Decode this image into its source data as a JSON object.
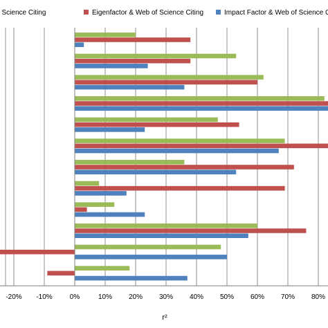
{
  "chart_data": {
    "type": "bar",
    "orientation": "horizontal",
    "categories": [
      "",
      "",
      "",
      "",
      "",
      "",
      "",
      "",
      "",
      "",
      "",
      ""
    ],
    "series": [
      {
        "name": "… & Web of Science Citing",
        "color": "#9BBB59",
        "values": [
          20,
          53,
          62,
          82,
          47,
          69,
          36,
          8,
          13,
          60,
          48,
          18
        ]
      },
      {
        "name": "Eigenfactor & Web of Science Citing",
        "color": "#C0504D",
        "values": [
          38,
          38,
          60,
          85,
          54,
          85,
          72,
          69,
          4,
          76,
          -28,
          -9
        ]
      },
      {
        "name": "Impact Factor & Web of Science Citing",
        "color": "#4F81BD",
        "values": [
          3,
          24,
          36,
          85,
          23,
          67,
          53,
          17,
          23,
          57,
          50,
          37
        ]
      }
    ],
    "xlabel": "r²",
    "x_ticks": [
      "-20%",
      "-10%",
      "0%",
      "10%",
      "20%",
      "30%",
      "40%",
      "50%",
      "60%",
      "70%",
      "80%"
    ],
    "xlim": [
      -25,
      83
    ],
    "grid": true,
    "legend_position": "top"
  }
}
